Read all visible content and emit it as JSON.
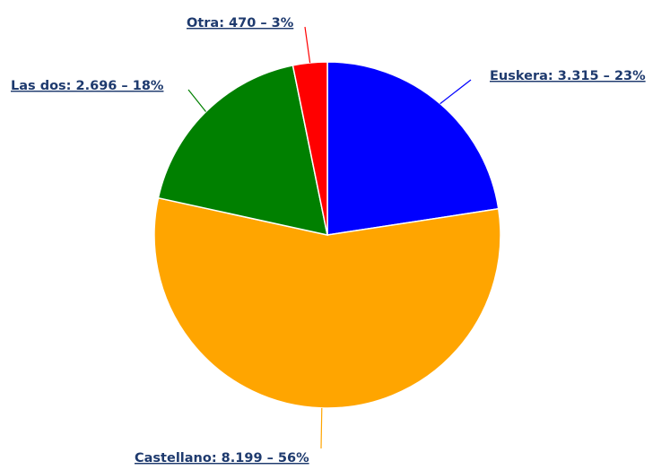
{
  "chart_data": {
    "type": "pie",
    "title": "",
    "slices": [
      {
        "name": "Euskera",
        "value": 3315,
        "label": "Euskera: 3.315 – 23%",
        "color": "#0000ff"
      },
      {
        "name": "Castellano",
        "value": 8199,
        "label": "Castellano: 8.199 – 56%",
        "color": "#ffa500"
      },
      {
        "name": "Las dos",
        "value": 2696,
        "label": "Las dos: 2.696 – 18%",
        "color": "#008000"
      },
      {
        "name": "Otra",
        "value": 470,
        "label": "Otra: 470 – 3%",
        "color": "#ff0000"
      }
    ]
  }
}
